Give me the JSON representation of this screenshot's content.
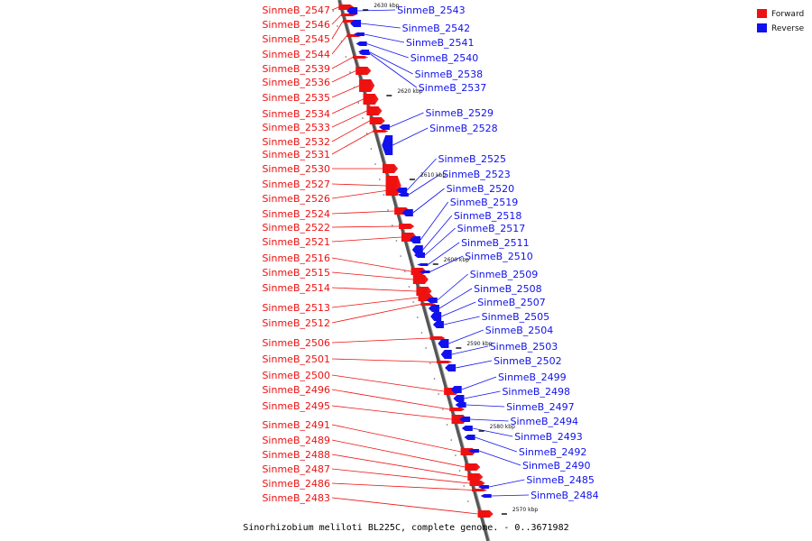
{
  "legend": {
    "forward": {
      "label": "Forward",
      "color": "#ee1111"
    },
    "reverse": {
      "label": "Reverse",
      "color": "#1111ee"
    }
  },
  "footer": "Sinorhizobium meliloti BL225C, complete genome. - 0..3671982",
  "ticks": [
    "2630 kbp",
    "2620 kbp",
    "2610 kbp",
    "2600 kbp",
    "2590 kbp",
    "2580 kbp",
    "2570 kbp"
  ],
  "forward_genes": [
    "SinmeB_2547",
    "SinmeB_2546",
    "SinmeB_2545",
    "SinmeB_2544",
    "SinmeB_2539",
    "SinmeB_2536",
    "SinmeB_2535",
    "SinmeB_2534",
    "SinmeB_2533",
    "SinmeB_2532",
    "SinmeB_2531",
    "SinmeB_2530",
    "SinmeB_2527",
    "SinmeB_2526",
    "SinmeB_2524",
    "SinmeB_2522",
    "SinmeB_2521",
    "SinmeB_2516",
    "SinmeB_2515",
    "SinmeB_2514",
    "SinmeB_2513",
    "SinmeB_2512",
    "SinmeB_2506",
    "SinmeB_2501",
    "SinmeB_2500",
    "SinmeB_2496",
    "SinmeB_2495",
    "SinmeB_2491",
    "SinmeB_2489",
    "SinmeB_2488",
    "SinmeB_2487",
    "SinmeB_2486",
    "SinmeB_2483"
  ],
  "reverse_genes": [
    "SinmeB_2543",
    "SinmeB_2542",
    "SinmeB_2541",
    "SinmeB_2540",
    "SinmeB_2538",
    "SinmeB_2537",
    "SinmeB_2529",
    "SinmeB_2528",
    "SinmeB_2525",
    "SinmeB_2523",
    "SinmeB_2520",
    "SinmeB_2519",
    "SinmeB_2518",
    "SinmeB_2517",
    "SinmeB_2511",
    "SinmeB_2510",
    "SinmeB_2509",
    "SinmeB_2508",
    "SinmeB_2507",
    "SinmeB_2505",
    "SinmeB_2504",
    "SinmeB_2503",
    "SinmeB_2502",
    "SinmeB_2499",
    "SinmeB_2498",
    "SinmeB_2497",
    "SinmeB_2494",
    "SinmeB_2493",
    "SinmeB_2492",
    "SinmeB_2490",
    "SinmeB_2485",
    "SinmeB_2484"
  ]
}
